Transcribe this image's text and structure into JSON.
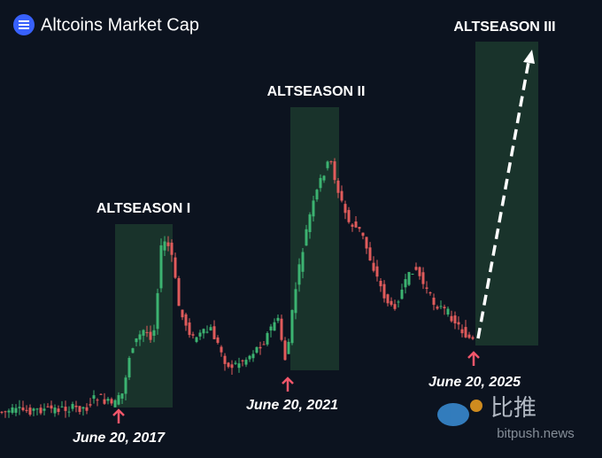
{
  "header": {
    "title": "Altcoins Market Cap"
  },
  "annotations": {
    "seasons": [
      "ALTSEASON I",
      "ALTSEASON II",
      "ALTSEASON III"
    ],
    "dates": [
      "June 20, 2017",
      "June 20, 2021",
      "June 20, 2025"
    ]
  },
  "watermark": {
    "brand": "比推",
    "site": "bitpush.news"
  }
}
